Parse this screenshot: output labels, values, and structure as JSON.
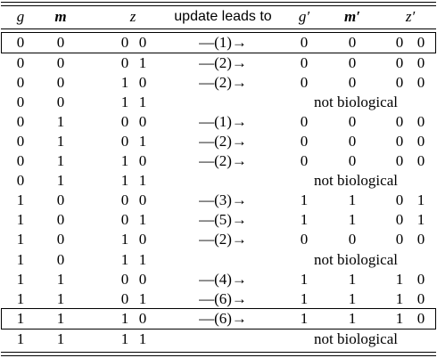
{
  "header": {
    "g": "g",
    "m": "m",
    "z": "z",
    "update": "update leads to",
    "g_prime": "g′",
    "m_prime": "m′",
    "z_prime": "z′"
  },
  "rows": [
    {
      "g": "0",
      "m": "0",
      "z1": "0",
      "z2": "0",
      "arrow": "—(1)→",
      "g2": "0",
      "m2": "0",
      "z21": "0",
      "z22": "0",
      "note": ""
    },
    {
      "g": "0",
      "m": "0",
      "z1": "0",
      "z2": "1",
      "arrow": "—(2)→",
      "g2": "0",
      "m2": "0",
      "z21": "0",
      "z22": "0",
      "note": ""
    },
    {
      "g": "0",
      "m": "0",
      "z1": "1",
      "z2": "0",
      "arrow": "—(2)→",
      "g2": "0",
      "m2": "0",
      "z21": "0",
      "z22": "0",
      "note": ""
    },
    {
      "g": "0",
      "m": "0",
      "z1": "1",
      "z2": "1",
      "arrow": "",
      "g2": "",
      "m2": "",
      "z21": "",
      "z22": "",
      "note": "not biological"
    },
    {
      "g": "0",
      "m": "1",
      "z1": "0",
      "z2": "0",
      "arrow": "—(1)→",
      "g2": "0",
      "m2": "0",
      "z21": "0",
      "z22": "0",
      "note": ""
    },
    {
      "g": "0",
      "m": "1",
      "z1": "0",
      "z2": "1",
      "arrow": "—(2)→",
      "g2": "0",
      "m2": "0",
      "z21": "0",
      "z22": "0",
      "note": ""
    },
    {
      "g": "0",
      "m": "1",
      "z1": "1",
      "z2": "0",
      "arrow": "—(2)→",
      "g2": "0",
      "m2": "0",
      "z21": "0",
      "z22": "0",
      "note": ""
    },
    {
      "g": "0",
      "m": "1",
      "z1": "1",
      "z2": "1",
      "arrow": "",
      "g2": "",
      "m2": "",
      "z21": "",
      "z22": "",
      "note": "not biological"
    },
    {
      "g": "1",
      "m": "0",
      "z1": "0",
      "z2": "0",
      "arrow": "—(3)→",
      "g2": "1",
      "m2": "1",
      "z21": "0",
      "z22": "1",
      "note": ""
    },
    {
      "g": "1",
      "m": "0",
      "z1": "0",
      "z2": "1",
      "arrow": "—(5)→",
      "g2": "1",
      "m2": "1",
      "z21": "0",
      "z22": "1",
      "note": ""
    },
    {
      "g": "1",
      "m": "0",
      "z1": "1",
      "z2": "0",
      "arrow": "—(2)→",
      "g2": "0",
      "m2": "0",
      "z21": "0",
      "z22": "0",
      "note": ""
    },
    {
      "g": "1",
      "m": "0",
      "z1": "1",
      "z2": "1",
      "arrow": "",
      "g2": "",
      "m2": "",
      "z21": "",
      "z22": "",
      "note": "not biological"
    },
    {
      "g": "1",
      "m": "1",
      "z1": "0",
      "z2": "0",
      "arrow": "—(4)→",
      "g2": "1",
      "m2": "1",
      "z21": "1",
      "z22": "0",
      "note": ""
    },
    {
      "g": "1",
      "m": "1",
      "z1": "0",
      "z2": "1",
      "arrow": "—(6)→",
      "g2": "1",
      "m2": "1",
      "z21": "1",
      "z22": "0",
      "note": ""
    },
    {
      "g": "1",
      "m": "1",
      "z1": "1",
      "z2": "0",
      "arrow": "—(6)→",
      "g2": "1",
      "m2": "1",
      "z21": "1",
      "z22": "0",
      "note": ""
    },
    {
      "g": "1",
      "m": "1",
      "z1": "1",
      "z2": "1",
      "arrow": "",
      "g2": "",
      "m2": "",
      "z21": "",
      "z22": "",
      "note": "not biological"
    }
  ]
}
